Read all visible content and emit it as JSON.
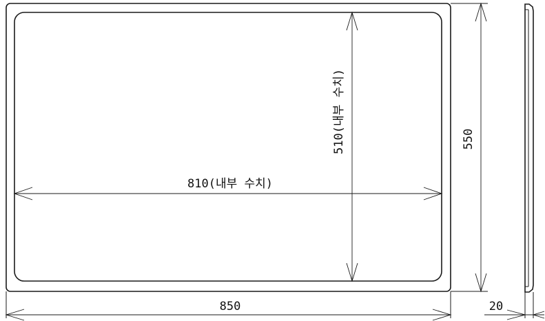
{
  "drawing": {
    "dimensions": {
      "outer_width": "850",
      "outer_height": "550",
      "inner_width": "810(내부 수치)",
      "inner_height": "510(내부 수치)",
      "thickness": "20"
    }
  }
}
